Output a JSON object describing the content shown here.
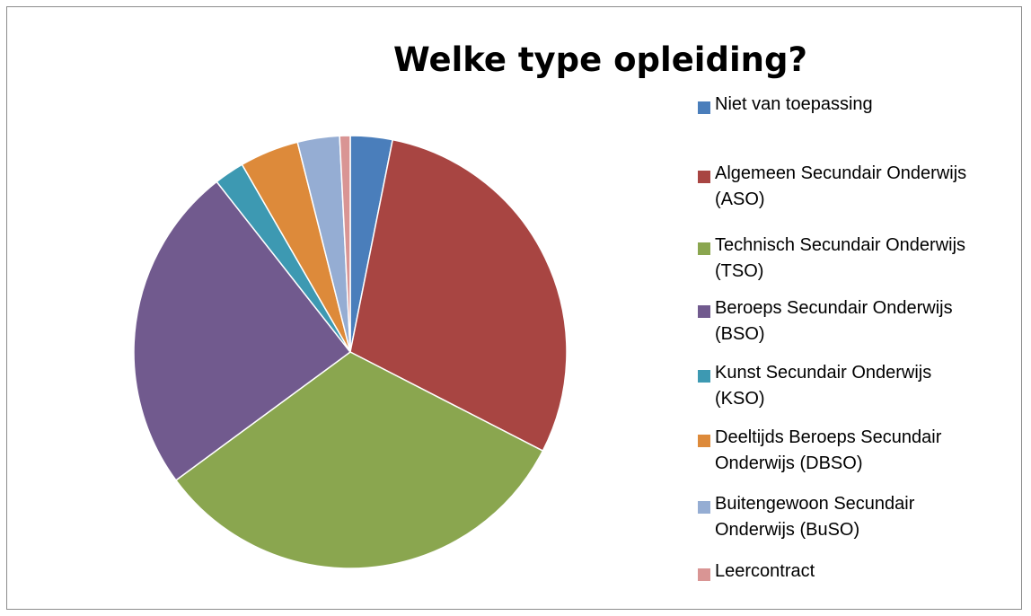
{
  "chart_data": {
    "type": "pie",
    "title": "Welke type opleiding?",
    "categories": [
      "Niet van toepassing",
      "Algemeen Secundair Onderwijs\n(ASO)",
      "Technisch Secundair Onderwijs\n(TSO)",
      "Beroeps Secundair Onderwijs\n(BSO)",
      "Kunst Secundair Onderwijs\n(KSO)",
      "Deeltijds Beroeps Secundair\nOnderwijs (DBSO)",
      "Buitengewoon Secundair\nOnderwijs (BuSO)",
      "Leercontract"
    ],
    "values": [
      3.2,
      30.0,
      33.0,
      25.0,
      2.3,
      4.5,
      3.2,
      0.8
    ],
    "colors": [
      "#4a7ebb",
      "#a84542",
      "#8aa64f",
      "#715a8e",
      "#3d99b2",
      "#dd8a3a",
      "#95add3",
      "#d99594"
    ],
    "legend_position": "right"
  }
}
